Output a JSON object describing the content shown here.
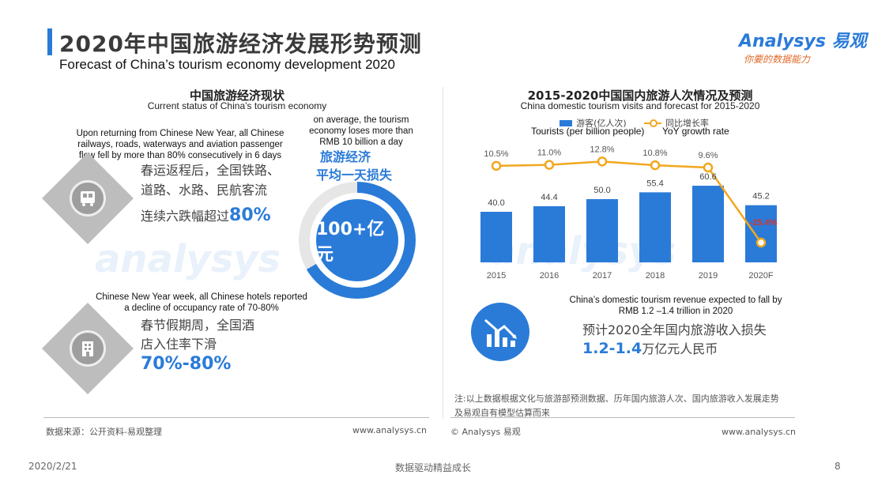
{
  "header": {
    "title_zh": "2020年中国旅游经济发展形势预测",
    "title_en": "Forecast of China’s tourism economy development 2020"
  },
  "logo": {
    "name": "Analysys 易观",
    "slogan": "你要的数据能力"
  },
  "left": {
    "title_zh": "中国旅游经济现状",
    "title_en": "Current status of China’s tourism economy",
    "item1": {
      "en": "Upon returning from Chinese New Year, all Chinese railways, roads, waterways and aviation passenger flow fell by more than 80% consecutively in 6 days",
      "zh_line1": "春运返程后，全国铁路、",
      "zh_line2": "道路、水路、民航客流",
      "zh_line3": "连续六跌幅超过",
      "zh_value": "80%"
    },
    "item2": {
      "en": "Chinese New Year week, all Chinese hotels reported a decline of occupancy rate of 70-80%",
      "zh_line1": "春节假期周，全国酒",
      "zh_line2": "店入住率下滑",
      "zh_value": "70%-80%"
    },
    "loss": {
      "en": "on average, the tourism economy loses more than RMB 10 billion a day",
      "zh_line1": "旅游经济",
      "zh_line2": "平均一天损失",
      "value": "100+亿元"
    }
  },
  "right": {
    "title_zh": "2015-2020中国国内旅游人次情况及预测",
    "title_en": "China domestic tourism visits and forecast for 2015-2020",
    "legend": {
      "bar_zh": "游客(亿人次)",
      "line_zh": "同比增长率",
      "bar_en": "Tourists (per billion people)",
      "line_en": "YoY growth rate"
    },
    "revenue": {
      "en": "China’s domestic tourism revenue expected to fall by RMB 1.2 –1.4 trillion in 2020",
      "zh": "预计2020全年国内旅游收入损失",
      "value": "1.2-1.4",
      "unit": "万亿元人民币"
    },
    "note_line1": "注:以上数据根据文化与旅游部预测数据、历年国内旅游人次、国内旅游收入发展走势",
    "note_line2": "及易观自有模型估算而来"
  },
  "chart_data": {
    "type": "bar",
    "categories": [
      "2015",
      "2016",
      "2017",
      "2018",
      "2019",
      "2020F"
    ],
    "series": [
      {
        "name": "游客(亿人次)",
        "type": "bar",
        "values": [
          40.0,
          44.4,
          50.0,
          55.4,
          60.6,
          45.2
        ]
      },
      {
        "name": "同比增长率",
        "type": "line",
        "values": [
          10.5,
          11.0,
          12.8,
          10.8,
          9.6,
          -25.4
        ]
      }
    ],
    "bar_labels": [
      "40.0",
      "44.4",
      "50.0",
      "55.4",
      "60.6",
      "45.2"
    ],
    "line_labels": [
      "10.5%",
      "11.0%",
      "12.8%",
      "10.8%",
      "9.6%",
      "-25.4%"
    ],
    "colors": {
      "bar": "#2a7bd8",
      "line": "#f2a71e",
      "negative_label": "#d9342b"
    }
  },
  "footer": {
    "source_left": "数据来源：公开资料-易观整理",
    "url_left": "www.analysys.cn",
    "copyright": "© Analysys 易观",
    "url_right": "www.analysys.cn"
  },
  "bottom": {
    "date": "2020/2/21",
    "slogan": "数据驱动精益成长",
    "page": "8"
  }
}
